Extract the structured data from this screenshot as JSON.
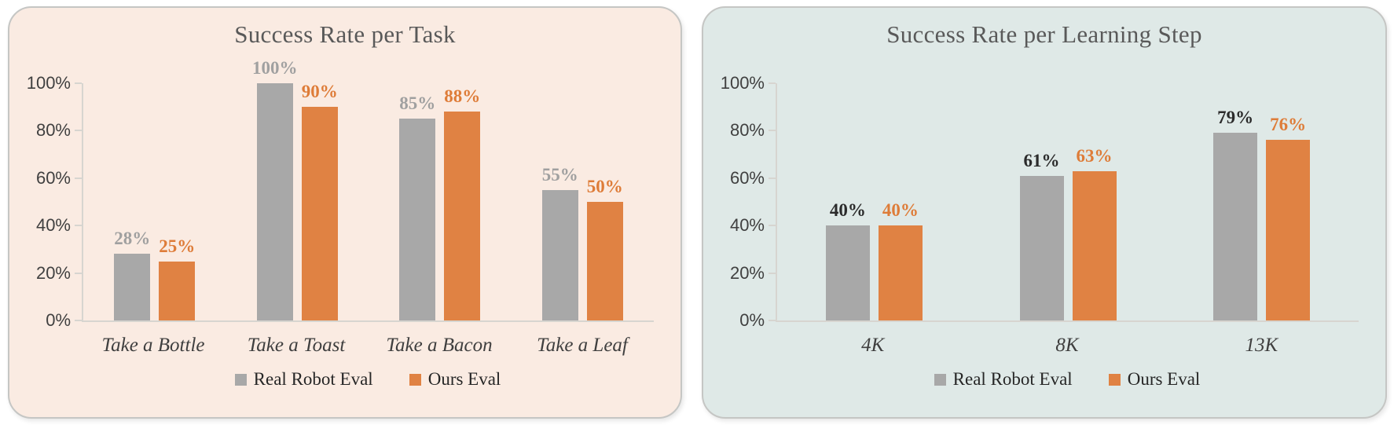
{
  "page": {
    "background": "#ffffff"
  },
  "chart_data": [
    {
      "type": "bar",
      "title": "Success Rate per Task",
      "categories": [
        "Take a Bottle",
        "Take a Toast",
        "Take a Bacon",
        "Take a Leaf"
      ],
      "series": [
        {
          "name": "Real Robot Eval",
          "values": [
            28,
            100,
            85,
            55
          ],
          "color": "#A8A8A8",
          "label_color": "#A0A0A0"
        },
        {
          "name": "Ours Eval",
          "values": [
            25,
            90,
            88,
            50
          ],
          "color": "#E08243",
          "label_color": "#DE7C38"
        }
      ],
      "value_suffix": "%",
      "y_ticks": [
        "0%",
        "20%",
        "40%",
        "60%",
        "80%",
        "100%"
      ],
      "ylim": [
        0,
        100
      ],
      "grid": false,
      "legend_position": "bottom",
      "panel_color": "#FAEBE2",
      "title_color": "#595959"
    },
    {
      "type": "bar",
      "title": "Success Rate per Learning Step",
      "categories": [
        "4K",
        "8K",
        "13K"
      ],
      "series": [
        {
          "name": "Real Robot Eval",
          "values": [
            40,
            61,
            79
          ],
          "color": "#A8A8A8",
          "label_color": "#2B2B2B"
        },
        {
          "name": "Ours Eval",
          "values": [
            40,
            63,
            76
          ],
          "color": "#E08243",
          "label_color": "#DE7C38"
        }
      ],
      "value_suffix": "%",
      "y_ticks": [
        "0%",
        "20%",
        "40%",
        "60%",
        "80%",
        "100%"
      ],
      "ylim": [
        0,
        100
      ],
      "grid": false,
      "legend_position": "bottom",
      "panel_color": "#DFE9E7",
      "title_color": "#595959"
    }
  ]
}
